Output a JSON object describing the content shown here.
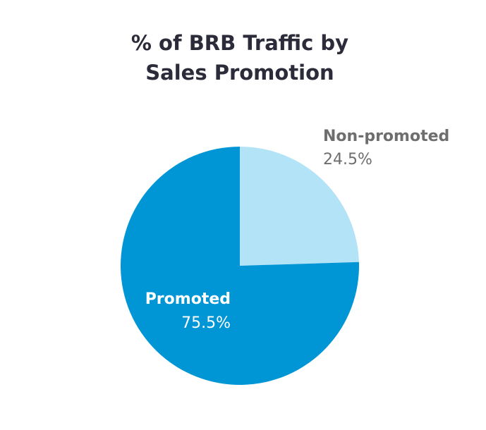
{
  "chart_data": {
    "type": "pie",
    "title_lines": [
      "% of BRB Traffic by",
      "Sales Promotion"
    ],
    "slices": [
      {
        "label": "Non-promoted",
        "value": 24.5,
        "value_label": "24.5%",
        "color": "#b3e3f6",
        "label_color": "#6e6e6e"
      },
      {
        "label": "Promoted",
        "value": 75.5,
        "value_label": "75.5%",
        "color": "#0096d6",
        "label_color": "#ffffff"
      }
    ],
    "start_angle": "12 o'clock",
    "direction": "clockwise",
    "legend": "none"
  }
}
